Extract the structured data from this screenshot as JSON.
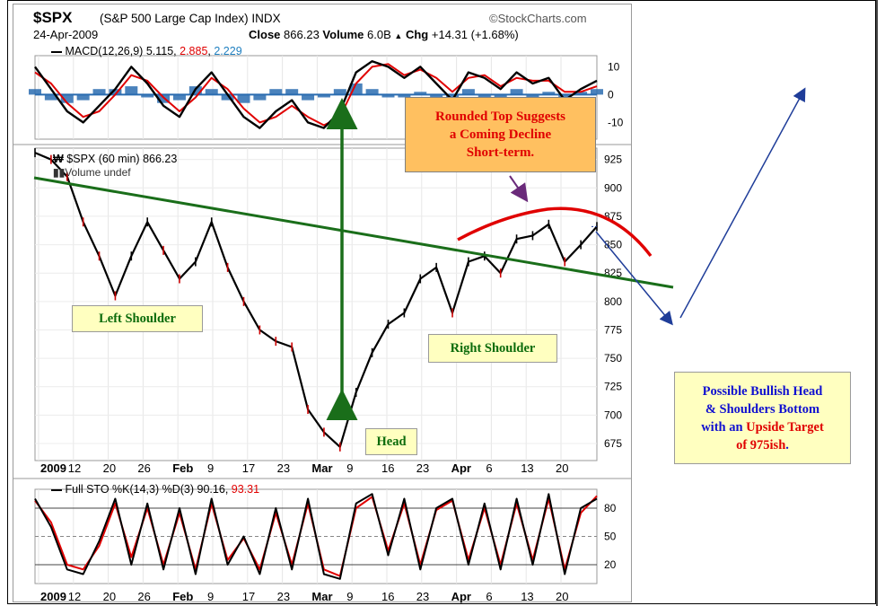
{
  "header": {
    "symbol": "$SPX",
    "name": "(S&P 500 Large Cap Index)",
    "exchange": "INDX",
    "source": "©StockCharts.com",
    "date": "24-Apr-2009",
    "close_label": "Close",
    "close_value": "866.23",
    "volume_label": "Volume",
    "volume_value": "6.0B",
    "chg_label": "Chg",
    "chg_value": "+14.31 (+1.68%)",
    "chg_arrow": "▲"
  },
  "macd_panel": {
    "label": "MACD(12,26,9)",
    "macd": "5.115",
    "signal": "2.885",
    "hist": "2.229"
  },
  "price_panel": {
    "label": "$SPX (60 min)",
    "value": "866.23",
    "volume_label": "Volume undef"
  },
  "sto_panel": {
    "label": "Full STO %K(14,3) %D(3)",
    "k": "90.16",
    "d": "93.31"
  },
  "annotations": {
    "rounded_top": [
      "Rounded Top Suggests",
      "a Coming Decline",
      "Short-term."
    ],
    "left_shoulder": "Left Shoulder",
    "right_shoulder": "Right Shoulder",
    "head": "Head",
    "bullish": [
      "Possible Bullish Head",
      "& Shoulders Bottom",
      "with an Upside Target",
      "of 975ish."
    ]
  },
  "colors": {
    "price": "#000000",
    "price_down": "#cc0000",
    "macd_line": "#000000",
    "signal_line": "#e00000",
    "histogram": "#2a6cb0",
    "neckline": "#1a6e1a",
    "rounded_top": "#e00000",
    "target_arrows": "#1f3d99"
  },
  "chart_data": [
    {
      "type": "line",
      "title": "$SPX (60 min)",
      "x": [
        "2009-01-02",
        "2009-01-05",
        "2009-01-08",
        "2009-01-12",
        "2009-01-15",
        "2009-01-20",
        "2009-01-23",
        "2009-01-26",
        "2009-01-29",
        "2009-02-02",
        "2009-02-05",
        "2009-02-09",
        "2009-02-12",
        "2009-02-17",
        "2009-02-20",
        "2009-02-23",
        "2009-02-26",
        "2009-03-02",
        "2009-03-05",
        "2009-03-09",
        "2009-03-11",
        "2009-03-13",
        "2009-03-16",
        "2009-03-19",
        "2009-03-23",
        "2009-03-26",
        "2009-03-30",
        "2009-04-02",
        "2009-04-06",
        "2009-04-09",
        "2009-04-13",
        "2009-04-15",
        "2009-04-17",
        "2009-04-20",
        "2009-04-22",
        "2009-04-24"
      ],
      "y": [
        931,
        925,
        910,
        870,
        840,
        805,
        840,
        870,
        845,
        820,
        835,
        870,
        830,
        800,
        775,
        765,
        760,
        705,
        685,
        672,
        720,
        755,
        780,
        790,
        820,
        830,
        790,
        835,
        840,
        825,
        855,
        858,
        868,
        835,
        850,
        866
      ],
      "yticks": [
        675,
        700,
        725,
        750,
        775,
        800,
        825,
        850,
        875,
        900,
        925
      ],
      "xtick_labels": [
        "2009",
        "12",
        "20",
        "26",
        "Feb",
        "9",
        "17",
        "23",
        "Mar",
        "9",
        "16",
        "23",
        "Apr",
        "6",
        "13",
        "20"
      ],
      "ylim": [
        660,
        935
      ],
      "annotations": [
        "Left Shoulder",
        "Head",
        "Right Shoulder",
        "Rounded Top Suggests a Coming Decline Short-term.",
        "Possible Bullish Head & Shoulders Bottom with an Upside Target of 975ish."
      ]
    },
    {
      "type": "line",
      "title": "MACD(12,26,9)",
      "yticks": [
        -10,
        0,
        10
      ],
      "ylim": [
        -16,
        14
      ],
      "series": [
        {
          "name": "MACD",
          "values": [
            10,
            2,
            -6,
            -10,
            -4,
            2,
            10,
            4,
            -4,
            -8,
            2,
            8,
            0,
            -8,
            -12,
            -6,
            -2,
            -10,
            -12,
            -6,
            8,
            12,
            10,
            6,
            10,
            4,
            -2,
            8,
            6,
            2,
            8,
            4,
            6,
            -2,
            2,
            5
          ]
        },
        {
          "name": "Signal",
          "values": [
            8,
            4,
            -3,
            -8,
            -6,
            0,
            7,
            5,
            -1,
            -6,
            -1,
            6,
            2,
            -5,
            -10,
            -8,
            -4,
            -8,
            -11,
            -8,
            4,
            10,
            11,
            7,
            9,
            6,
            1,
            6,
            7,
            3,
            6,
            5,
            5,
            1,
            1,
            3
          ]
        }
      ]
    },
    {
      "type": "line",
      "title": "Full STO %K(14,3) %D(3)",
      "yticks": [
        20,
        50,
        80
      ],
      "ylim": [
        0,
        100
      ],
      "series": [
        {
          "name": "%K",
          "values": [
            90,
            60,
            15,
            10,
            45,
            90,
            20,
            85,
            15,
            80,
            10,
            90,
            20,
            50,
            10,
            80,
            15,
            90,
            10,
            5,
            85,
            95,
            30,
            90,
            15,
            80,
            90,
            20,
            85,
            15,
            90,
            20,
            95,
            10,
            80,
            90
          ]
        },
        {
          "name": "%D",
          "values": [
            88,
            65,
            20,
            15,
            40,
            85,
            28,
            80,
            20,
            75,
            15,
            85,
            25,
            48,
            15,
            75,
            20,
            85,
            15,
            8,
            80,
            92,
            35,
            85,
            20,
            78,
            88,
            25,
            80,
            20,
            85,
            25,
            90,
            15,
            75,
            93
          ]
        }
      ]
    }
  ]
}
